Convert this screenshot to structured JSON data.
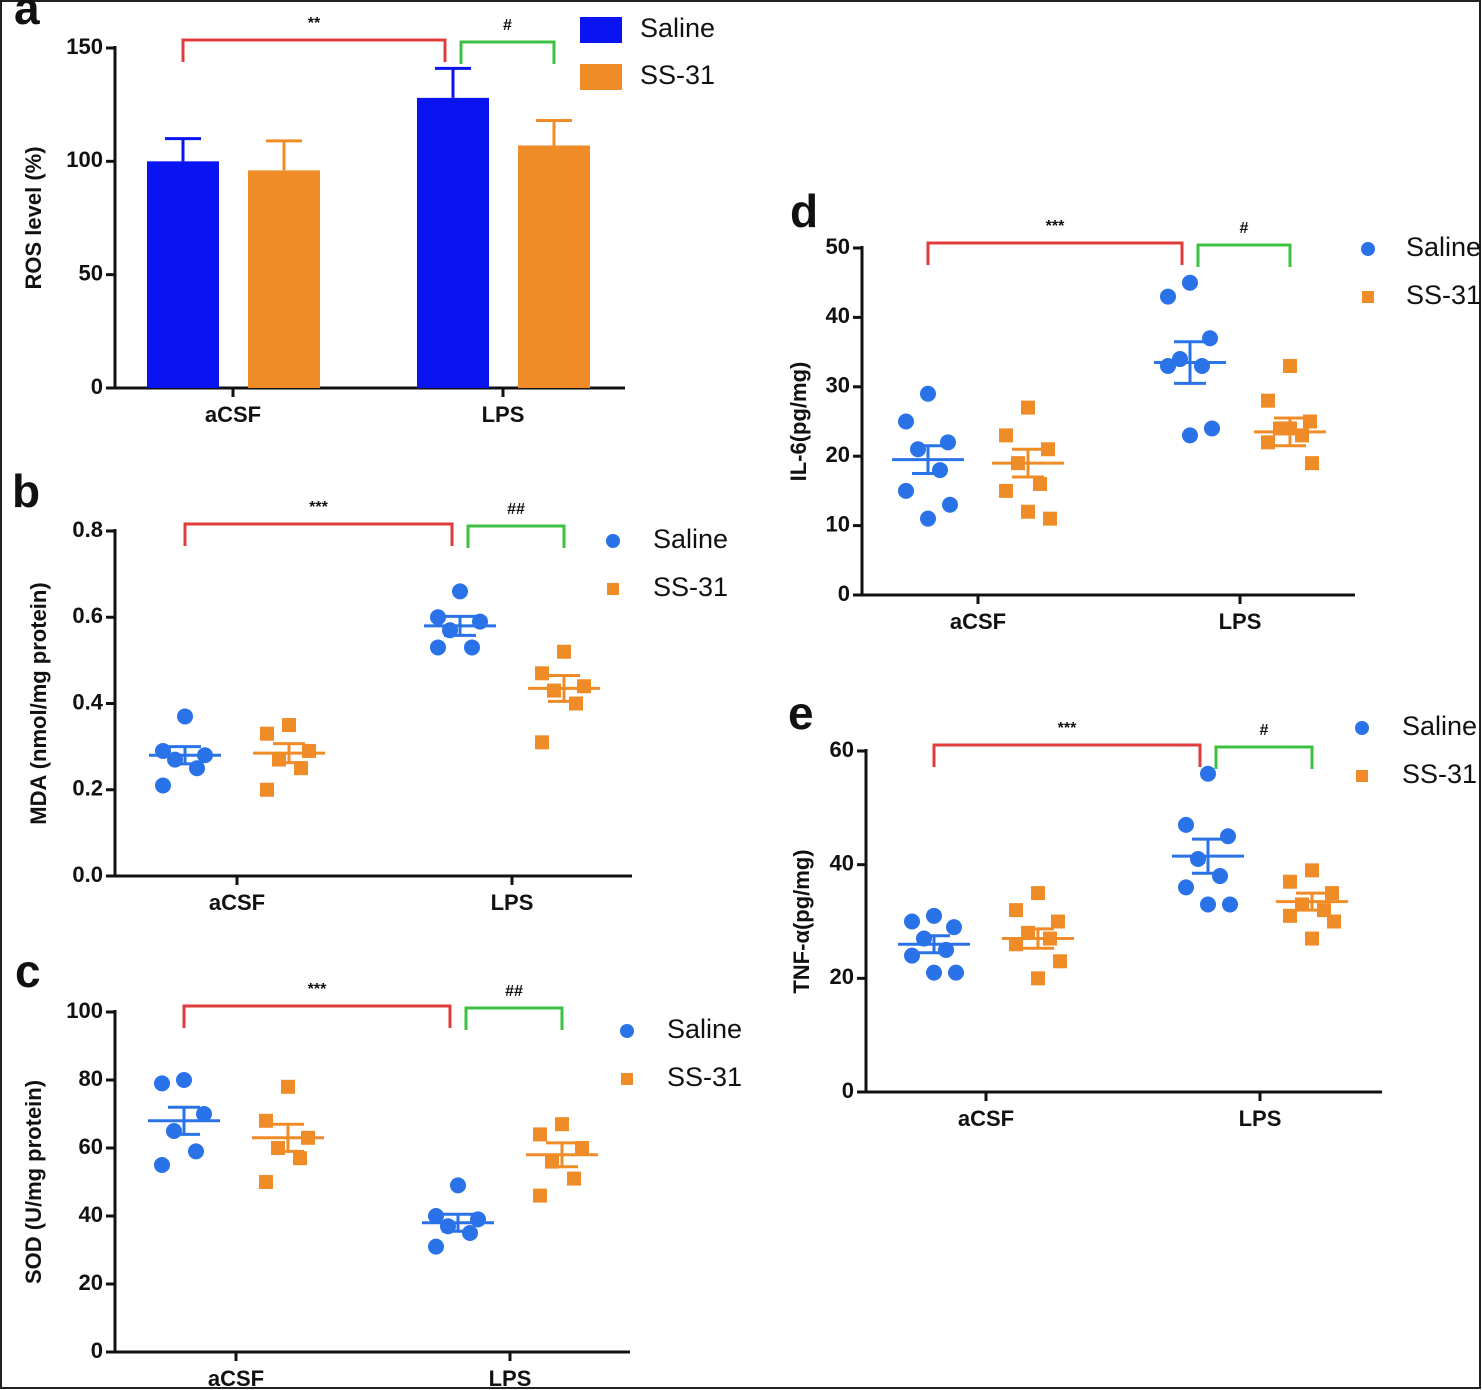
{
  "chart_data": [
    {
      "type": "bar",
      "panel_label": "a",
      "y_label": "ROS level (%)",
      "categories": [
        "aCSF",
        "LPS"
      ],
      "series": [
        {
          "name": "Saline",
          "color": "#0a14f0",
          "values": [
            100,
            128
          ],
          "errors": [
            10,
            13
          ]
        },
        {
          "name": "SS-31",
          "color": "#f08c28",
          "values": [
            96,
            107
          ],
          "errors": [
            13,
            11
          ]
        }
      ],
      "ylim": [
        0,
        150
      ],
      "yticks": [
        0,
        50,
        100,
        150
      ],
      "annotations": [
        {
          "text": "**",
          "color": "#e03c3c"
        },
        {
          "text": "#",
          "color": "#3cc040"
        }
      ]
    },
    {
      "type": "dot",
      "panel_label": "b",
      "y_label": "MDA (nmol/mg protein)",
      "categories": [
        "aCSF",
        "LPS"
      ],
      "series": [
        {
          "name": "Saline",
          "color": "#2a72e8",
          "marker": "circle",
          "points": [
            [
              0.37,
              0.29,
              0.28,
              0.27,
              0.25,
              0.21
            ],
            [
              0.66,
              0.6,
              0.59,
              0.57,
              0.53,
              0.53
            ]
          ],
          "mean": [
            0.28,
            0.58
          ],
          "sem": [
            0.02,
            0.022
          ]
        },
        {
          "name": "SS-31",
          "color": "#f08c28",
          "marker": "square",
          "points": [
            [
              0.35,
              0.33,
              0.29,
              0.27,
              0.25,
              0.2
            ],
            [
              0.52,
              0.47,
              0.44,
              0.43,
              0.4,
              0.31
            ]
          ],
          "mean": [
            0.285,
            0.435
          ],
          "sem": [
            0.022,
            0.03
          ]
        }
      ],
      "ylim": [
        0,
        0.8
      ],
      "yticks": [
        {
          "value": 0,
          "label": "0.0"
        },
        0.2,
        0.4,
        0.6,
        0.8
      ],
      "annotations": [
        {
          "text": "***",
          "color": "#e03c3c"
        },
        {
          "text": "##",
          "color": "#3cc040"
        }
      ]
    },
    {
      "type": "dot",
      "panel_label": "c",
      "y_label": "SOD (U/mg protein)",
      "categories": [
        "aCSF",
        "LPS"
      ],
      "series": [
        {
          "name": "Saline",
          "color": "#2a72e8",
          "marker": "circle",
          "points": [
            [
              80,
              79,
              70,
              65,
              59,
              55
            ],
            [
              49,
              40,
              39,
              37,
              35,
              31
            ]
          ],
          "mean": [
            68,
            38
          ],
          "sem": [
            4,
            2.5
          ]
        },
        {
          "name": "SS-31",
          "color": "#f08c28",
          "marker": "square",
          "points": [
            [
              78,
              68,
              63,
              60,
              57,
              50
            ],
            [
              67,
              64,
              60,
              56,
              51,
              46
            ]
          ],
          "mean": [
            63,
            58
          ],
          "sem": [
            4,
            3.5
          ]
        }
      ],
      "ylim": [
        0,
        100
      ],
      "yticks": [
        0,
        20,
        40,
        60,
        80,
        100
      ],
      "annotations": [
        {
          "text": "***",
          "color": "#e03c3c"
        },
        {
          "text": "##",
          "color": "#3cc040"
        }
      ]
    },
    {
      "type": "dot",
      "panel_label": "d",
      "y_label": "IL-6(pg/mg)",
      "categories": [
        "aCSF",
        "LPS"
      ],
      "series": [
        {
          "name": "Saline",
          "color": "#2a72e8",
          "marker": "circle",
          "points": [
            [
              29,
              25,
              22,
              21,
              18,
              15,
              13,
              11
            ],
            [
              45,
              43,
              37,
              34,
              33,
              33,
              24,
              23
            ]
          ],
          "mean": [
            19.5,
            33.5
          ],
          "sem": [
            2,
            3
          ]
        },
        {
          "name": "SS-31",
          "color": "#f08c28",
          "marker": "square",
          "points": [
            [
              27,
              23,
              21,
              19,
              16,
              15,
              11,
              12
            ],
            [
              33,
              28,
              25,
              24,
              23,
              22,
              19,
              24
            ]
          ],
          "mean": [
            19,
            23.5
          ],
          "sem": [
            2,
            2
          ]
        }
      ],
      "ylim": [
        0,
        50
      ],
      "yticks": [
        0,
        10,
        20,
        30,
        40,
        50
      ],
      "annotations": [
        {
          "text": "***",
          "color": "#e03c3c"
        },
        {
          "text": "#",
          "color": "#3cc040"
        }
      ]
    },
    {
      "type": "dot",
      "panel_label": "e",
      "y_label": "TNF-α(pg/mg)",
      "categories": [
        "aCSF",
        "LPS"
      ],
      "series": [
        {
          "name": "Saline",
          "color": "#2a72e8",
          "marker": "circle",
          "points": [
            [
              31,
              30,
              29,
              27,
              25,
              24,
              21,
              21
            ],
            [
              56,
              47,
              45,
              41,
              38,
              36,
              33,
              33
            ]
          ],
          "mean": [
            26,
            41.5
          ],
          "sem": [
            1.5,
            3
          ]
        },
        {
          "name": "SS-31",
          "color": "#f08c28",
          "marker": "square",
          "points": [
            [
              35,
              32,
              30,
              28,
              27,
              26,
              23,
              20
            ],
            [
              39,
              37,
              35,
              33,
              32,
              31,
              30,
              27
            ]
          ],
          "mean": [
            27,
            33.5
          ],
          "sem": [
            1.7,
            1.5
          ]
        }
      ],
      "ylim": [
        0,
        60
      ],
      "yticks": [
        0,
        20,
        40,
        60
      ],
      "annotations": [
        {
          "text": "***",
          "color": "#e03c3c"
        },
        {
          "text": "#",
          "color": "#3cc040"
        }
      ]
    }
  ]
}
